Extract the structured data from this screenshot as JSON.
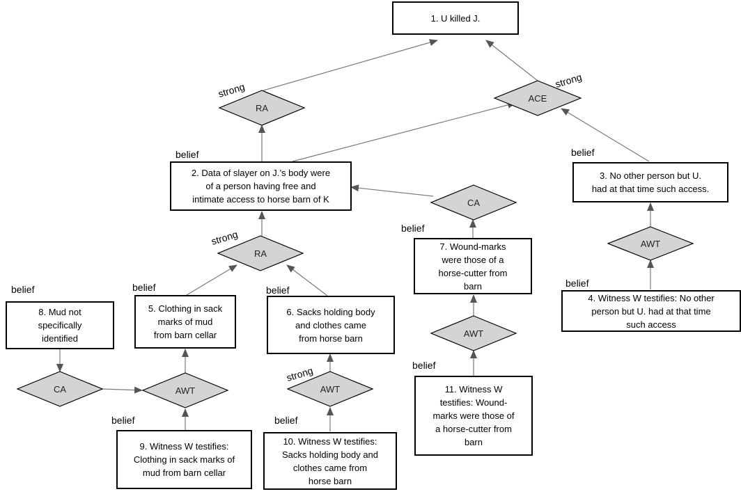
{
  "nodes": {
    "n1": "1. U killed J.",
    "n2": "2. Data of slayer on J.’s body were\nof a person having free and\nintimate access to horse barn of K",
    "n3": "3. No other person but U.\nhad at that time such access.",
    "n4": "4. Witness W testifies: No other\nperson but U. had at that time\nsuch access",
    "n5": "5. Clothing in sack\nmarks of mud\nfrom barn cellar",
    "n6": "6. Sacks holding body\nand clothes came\nfrom horse barn",
    "n7": "7. Wound-marks\nwere those of a\nhorse-cutter from\nbarn",
    "n8": "8. Mud not\nspecifically\nidentified",
    "n9": "9. Witness W testifies:\nClothing in sack marks of\nmud from barn cellar",
    "n10": "10. Witness W testifies:\nSacks holding body and\nclothes came from\nhorse barn",
    "n11": "11. Witness W\ntestifies: Wound-\nmarks were those of\na horse-cutter from\nbarn"
  },
  "diamonds": {
    "ra_top": "RA",
    "ace": "ACE",
    "ra_mid": "RA",
    "ca_right": "CA",
    "awt_right": "AWT",
    "awt_mid": "AWT",
    "ca_left": "CA",
    "awt_left": "AWT",
    "awt_center": "AWT"
  },
  "tags": {
    "strong_ra_top": "strong",
    "strong_ace": "strong",
    "belief_n2": "belief",
    "belief_n3": "belief",
    "strong_ra_mid": "strong",
    "belief_n7": "belief",
    "belief_n4": "belief",
    "belief_n5": "belief",
    "belief_n6": "belief",
    "belief_n8": "belief",
    "belief_n11": "belief",
    "strong_awt_center": "strong",
    "belief_n9": "belief",
    "belief_n10": "belief"
  },
  "colors": {
    "diamond_fill": "#d4d4d4",
    "diamond_stroke": "#000000",
    "arrow": "#6e6e6e",
    "box_border": "#000000"
  }
}
